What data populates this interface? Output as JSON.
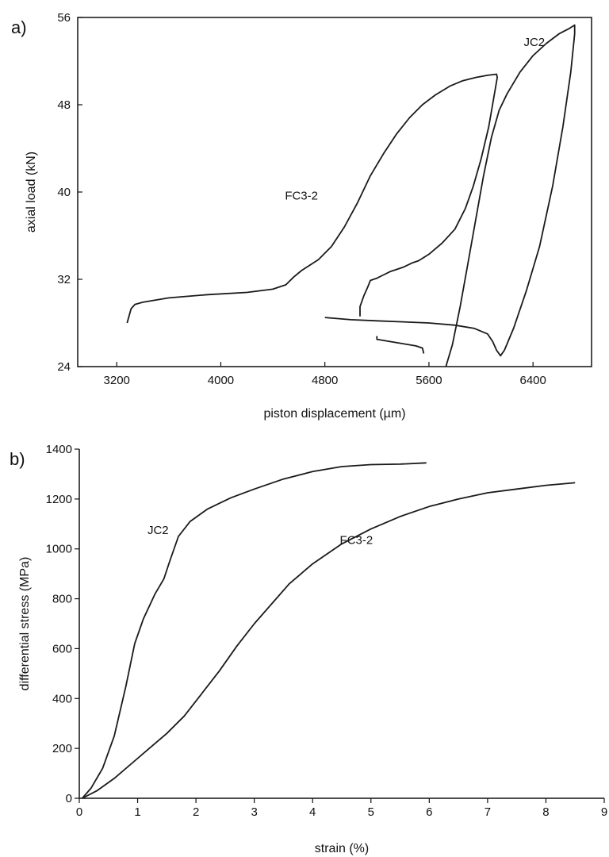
{
  "chart_data": [
    {
      "type": "line",
      "panel_label": "a)",
      "title": "",
      "xlabel": "piston displacement (µm)",
      "ylabel": "axial load (kN)",
      "xlim": [
        2900,
        6850
      ],
      "ylim": [
        24,
        56
      ],
      "xticks": [
        3200,
        4000,
        4800,
        5600,
        6400
      ],
      "yticks": [
        24,
        32,
        40,
        48,
        56
      ],
      "xtick_labels": [
        "3200",
        "4000",
        "4800",
        "5600",
        "6400"
      ],
      "ytick_labels": [
        "24",
        "32",
        "40",
        "48",
        "56"
      ],
      "grid": false,
      "series": [
        {
          "name": "FC3-2",
          "x": [
            3280,
            3310,
            3340,
            3400,
            3600,
            3900,
            4200,
            4400,
            4500,
            4560,
            4620,
            4750,
            4850,
            4950,
            5050,
            5150,
            5250,
            5350,
            5450,
            5550,
            5650,
            5760,
            5860,
            5960,
            6050,
            6120,
            6125,
            6060,
            6000,
            5940,
            5880,
            5800,
            5700,
            5600,
            5560,
            5520,
            5470,
            5400,
            5350,
            5300,
            5250,
            5200,
            5150,
            5130,
            5100,
            5070,
            5070
          ],
          "y": [
            28.0,
            29.3,
            29.7,
            29.9,
            30.3,
            30.6,
            30.8,
            31.1,
            31.5,
            32.2,
            32.8,
            33.8,
            35.0,
            36.8,
            39.0,
            41.5,
            43.5,
            45.3,
            46.8,
            48.0,
            48.9,
            49.7,
            50.2,
            50.5,
            50.7,
            50.8,
            50.5,
            46.0,
            43.0,
            40.5,
            38.5,
            36.6,
            35.3,
            34.3,
            34.0,
            33.7,
            33.5,
            33.1,
            32.9,
            32.7,
            32.4,
            32.1,
            31.9,
            31.3,
            30.5,
            29.5,
            28.6
          ]
        },
        {
          "name": "JC2",
          "x": [
            5730,
            5780,
            5840,
            5900,
            5960,
            6020,
            6080,
            6140,
            6200,
            6300,
            6400,
            6500,
            6600,
            6680,
            6720,
            6720,
            6690,
            6630,
            6550,
            6450,
            6350,
            6250,
            6180,
            6150,
            6120,
            6090,
            6050,
            5950,
            5800,
            5600,
            5400,
            5200,
            5000,
            4800
          ],
          "y": [
            24.0,
            26.0,
            29.5,
            33.5,
            37.5,
            41.5,
            45.0,
            47.5,
            49.0,
            51.0,
            52.5,
            53.6,
            54.5,
            55.0,
            55.3,
            54.5,
            51.0,
            46.0,
            40.5,
            35.0,
            31.0,
            27.5,
            25.5,
            25.0,
            25.5,
            26.3,
            27.0,
            27.5,
            27.8,
            28.0,
            28.1,
            28.2,
            28.3,
            28.5
          ]
        },
        {
          "name": "",
          "x": [
            5200,
            5200,
            5300,
            5400,
            5500,
            5550,
            5560
          ],
          "y": [
            26.8,
            26.5,
            26.3,
            26.1,
            25.9,
            25.7,
            25.2
          ]
        }
      ],
      "annotations": [
        {
          "text": "FC3-2",
          "x": 4620,
          "y": 39.3
        },
        {
          "text": "JC2",
          "x": 6410,
          "y": 53.4
        }
      ]
    },
    {
      "type": "line",
      "panel_label": "b)",
      "title": "",
      "xlabel": "strain (%)",
      "ylabel": "differential stress (MPa)",
      "xlim": [
        0,
        9
      ],
      "ylim": [
        0,
        1400
      ],
      "xticks": [
        0,
        1,
        2,
        3,
        4,
        5,
        6,
        7,
        8,
        9
      ],
      "yticks": [
        0,
        200,
        400,
        600,
        800,
        1000,
        1200,
        1400
      ],
      "xtick_labels": [
        "0",
        "1",
        "2",
        "3",
        "4",
        "5",
        "6",
        "7",
        "8",
        "9"
      ],
      "ytick_labels": [
        "0",
        "200",
        "400",
        "600",
        "800",
        "1000",
        "1200",
        "1400"
      ],
      "grid": false,
      "series": [
        {
          "name": "JC2",
          "x": [
            0.05,
            0.2,
            0.4,
            0.6,
            0.8,
            0.95,
            1.1,
            1.3,
            1.45,
            1.55,
            1.7,
            1.9,
            2.2,
            2.6,
            3.0,
            3.5,
            4.0,
            4.5,
            5.0,
            5.5,
            5.95
          ],
          "y": [
            0,
            40,
            120,
            250,
            450,
            620,
            720,
            820,
            880,
            950,
            1050,
            1110,
            1160,
            1205,
            1240,
            1280,
            1310,
            1330,
            1338,
            1340,
            1345
          ]
        },
        {
          "name": "FC3-2",
          "x": [
            0.05,
            0.3,
            0.6,
            0.9,
            1.2,
            1.5,
            1.8,
            2.1,
            2.4,
            2.7,
            3.0,
            3.3,
            3.6,
            4.0,
            4.5,
            5.0,
            5.5,
            6.0,
            6.5,
            7.0,
            7.5,
            8.0,
            8.5
          ],
          "y": [
            0,
            30,
            80,
            140,
            200,
            260,
            330,
            420,
            510,
            610,
            700,
            780,
            860,
            940,
            1020,
            1080,
            1130,
            1170,
            1200,
            1225,
            1240,
            1255,
            1265
          ]
        }
      ],
      "annotations": [
        {
          "text": "JC2",
          "x": 1.35,
          "y": 1060
        },
        {
          "text": "FC3-2",
          "x": 4.75,
          "y": 1020
        }
      ]
    }
  ]
}
